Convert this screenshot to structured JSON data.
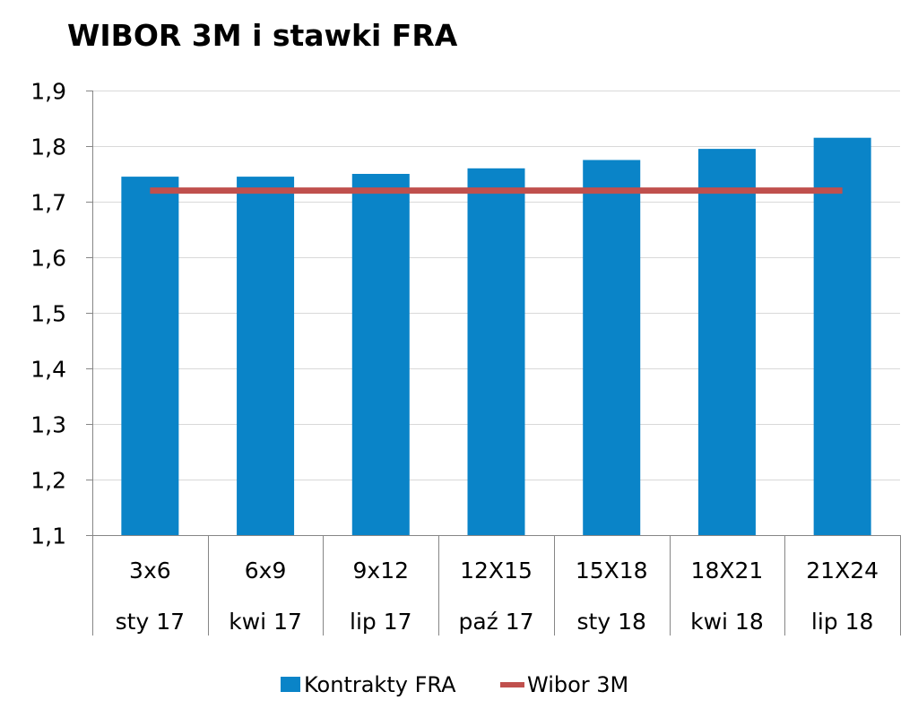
{
  "chart_data": {
    "type": "bar",
    "title": "WIBOR 3M i stawki FRA",
    "xlabel": "",
    "ylabel": "",
    "categories": [
      [
        "3x6",
        "sty 17"
      ],
      [
        "6x9",
        "kwi 17"
      ],
      [
        "9x12",
        "lip 17"
      ],
      [
        "12X15",
        "paź 17"
      ],
      [
        "15X18",
        "sty 18"
      ],
      [
        "18X21",
        "kwi 18"
      ],
      [
        "21X24",
        "lip 18"
      ]
    ],
    "yticks": [
      "1,1",
      "1,2",
      "1,3",
      "1,4",
      "1,5",
      "1,6",
      "1,7",
      "1,8",
      "1,9"
    ],
    "ylim": [
      1.1,
      1.9
    ],
    "ytick_step": 0.1,
    "grid": true,
    "legend_position": "bottom",
    "series": [
      {
        "name": "Kontrakty FRA",
        "type": "bar",
        "color": "#0A84C8",
        "values": [
          1.745,
          1.745,
          1.75,
          1.76,
          1.775,
          1.795,
          1.815
        ]
      },
      {
        "name": "Wibor 3M",
        "type": "line",
        "color": "#C0504D",
        "values": [
          1.72,
          1.72,
          1.72,
          1.72,
          1.72,
          1.72,
          1.72
        ]
      }
    ]
  }
}
